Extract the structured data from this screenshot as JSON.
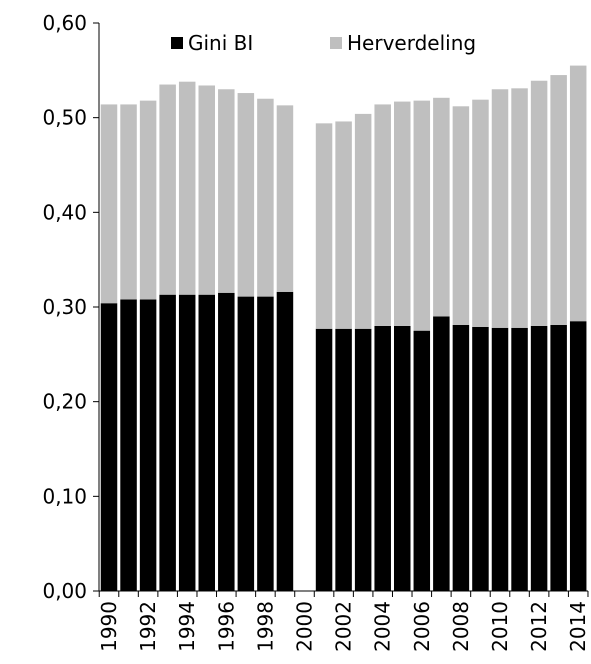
{
  "chart_data": {
    "type": "bar",
    "stacked": true,
    "categories": [
      "1990",
      "1991",
      "1992",
      "1993",
      "1994",
      "1995",
      "1996",
      "1997",
      "1998",
      "1999",
      "2000",
      "2001",
      "2002",
      "2003",
      "2004",
      "2005",
      "2006",
      "2007",
      "2008",
      "2009",
      "2010",
      "2011",
      "2012",
      "2013",
      "2014"
    ],
    "x_tick_labels": [
      "1990",
      "1992",
      "1994",
      "1996",
      "1998",
      "2000",
      "2002",
      "2004",
      "2006",
      "2008",
      "2010",
      "2012",
      "2014"
    ],
    "series": [
      {
        "name": "Gini BI",
        "color": "#000000",
        "values": [
          0.304,
          0.308,
          0.308,
          0.313,
          0.313,
          0.313,
          0.315,
          0.311,
          0.311,
          0.316,
          null,
          0.277,
          0.277,
          0.277,
          0.28,
          0.28,
          0.275,
          0.29,
          0.281,
          0.279,
          0.278,
          0.278,
          0.28,
          0.281,
          0.285
        ]
      },
      {
        "name": "Herverdeling",
        "color": "#bfbfbf",
        "values": [
          0.21,
          0.206,
          0.21,
          0.222,
          0.225,
          0.221,
          0.215,
          0.215,
          0.209,
          0.197,
          null,
          0.217,
          0.219,
          0.227,
          0.234,
          0.237,
          0.243,
          0.231,
          0.231,
          0.24,
          0.252,
          0.253,
          0.259,
          0.264,
          0.27
        ]
      }
    ],
    "y_tick_labels": [
      "0,00",
      "0,10",
      "0,20",
      "0,30",
      "0,40",
      "0,50",
      "0,60"
    ],
    "y_ticks": [
      0,
      0.1,
      0.2,
      0.3,
      0.4,
      0.5,
      0.6
    ],
    "ylim": [
      0,
      0.6
    ],
    "legend_position": "top",
    "grid": false
  }
}
